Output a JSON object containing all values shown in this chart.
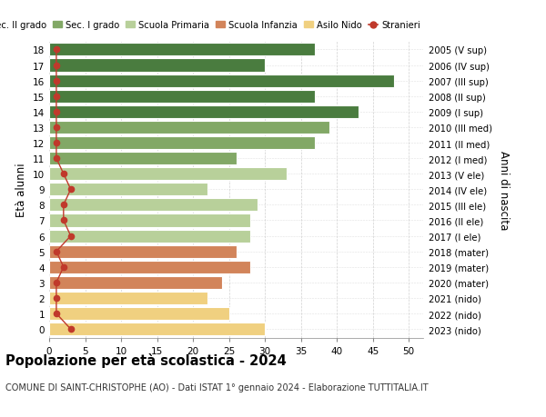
{
  "ages": [
    18,
    17,
    16,
    15,
    14,
    13,
    12,
    11,
    10,
    9,
    8,
    7,
    6,
    5,
    4,
    3,
    2,
    1,
    0
  ],
  "bar_values": [
    37,
    30,
    48,
    37,
    43,
    39,
    37,
    26,
    33,
    22,
    29,
    28,
    28,
    26,
    28,
    24,
    22,
    25,
    30
  ],
  "stranieri": [
    1,
    1,
    1,
    1,
    1,
    1,
    1,
    1,
    2,
    3,
    2,
    2,
    3,
    1,
    2,
    1,
    1,
    1,
    3
  ],
  "right_labels": [
    "2005 (V sup)",
    "2006 (IV sup)",
    "2007 (III sup)",
    "2008 (II sup)",
    "2009 (I sup)",
    "2010 (III med)",
    "2011 (II med)",
    "2012 (I med)",
    "2013 (V ele)",
    "2014 (IV ele)",
    "2015 (III ele)",
    "2016 (II ele)",
    "2017 (I ele)",
    "2018 (mater)",
    "2019 (mater)",
    "2020 (mater)",
    "2021 (nido)",
    "2022 (nido)",
    "2023 (nido)"
  ],
  "bar_colors": [
    "#4a7c3f",
    "#4a7c3f",
    "#4a7c3f",
    "#4a7c3f",
    "#4a7c3f",
    "#82a866",
    "#82a866",
    "#82a866",
    "#b8d09a",
    "#b8d09a",
    "#b8d09a",
    "#b8d09a",
    "#b8d09a",
    "#d2845a",
    "#d2845a",
    "#d2845a",
    "#f0d080",
    "#f0d080",
    "#f0d080"
  ],
  "legend_labels": [
    "Sec. II grado",
    "Sec. I grado",
    "Scuola Primaria",
    "Scuola Infanzia",
    "Asilo Nido",
    "Stranieri"
  ],
  "legend_colors": [
    "#4a7c3f",
    "#82a866",
    "#b8d09a",
    "#d2845a",
    "#f0d080",
    "#c0392b"
  ],
  "stranieri_color": "#c0392b",
  "title": "Popolazione per età scolastica - 2024",
  "subtitle": "COMUNE DI SAINT-CHRISTOPHE (AO) - Dati ISTAT 1° gennaio 2024 - Elaborazione TUTTITALIA.IT",
  "ylabel": "Età alunni",
  "ylabel2": "Anni di nascita",
  "xlim": [
    0,
    52
  ],
  "background_color": "#ffffff",
  "grid_color": "#cccccc"
}
